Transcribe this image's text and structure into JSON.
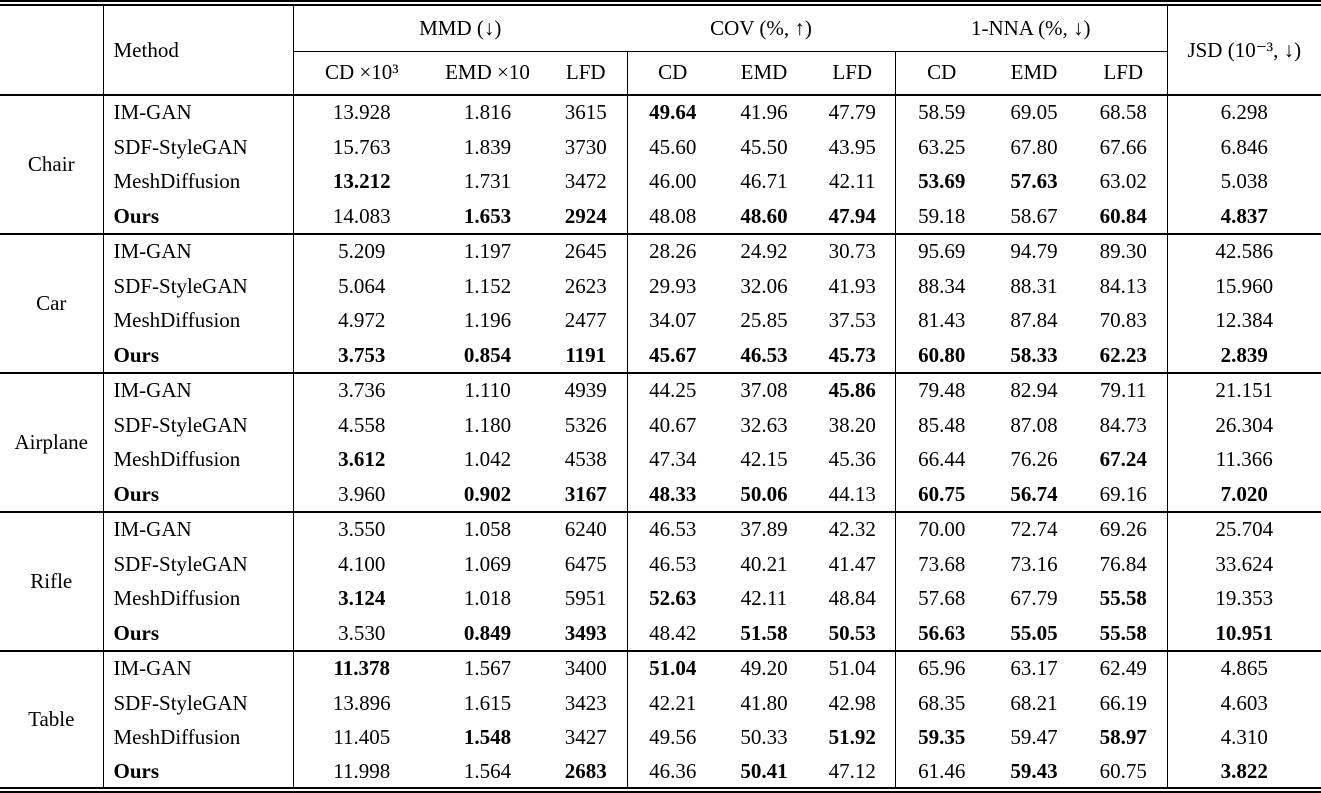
{
  "table": {
    "header": {
      "method_label": "Method",
      "groups": [
        {
          "label": "MMD (↓)",
          "subcols": [
            "CD ×10³",
            "EMD ×10",
            "LFD"
          ]
        },
        {
          "label": "COV (%, ↑)",
          "subcols": [
            "CD",
            "EMD",
            "LFD"
          ]
        },
        {
          "label": "1-NNA (%, ↓)",
          "subcols": [
            "CD",
            "EMD",
            "LFD"
          ]
        }
      ],
      "jsd_label": "JSD (10⁻³, ↓)"
    },
    "sections": [
      {
        "category": "Chair",
        "rows": [
          {
            "method": "IM-GAN",
            "method_bold": false,
            "values": [
              "13.928",
              "1.816",
              "3615",
              "49.64",
              "41.96",
              "47.79",
              "58.59",
              "69.05",
              "68.58",
              "6.298"
            ],
            "bold": [
              3
            ]
          },
          {
            "method": "SDF-StyleGAN",
            "method_bold": false,
            "values": [
              "15.763",
              "1.839",
              "3730",
              "45.60",
              "45.50",
              "43.95",
              "63.25",
              "67.80",
              "67.66",
              "6.846"
            ],
            "bold": []
          },
          {
            "method": "MeshDiffusion",
            "method_bold": false,
            "values": [
              "13.212",
              "1.731",
              "3472",
              "46.00",
              "46.71",
              "42.11",
              "53.69",
              "57.63",
              "63.02",
              "5.038"
            ],
            "bold": [
              0,
              6,
              7
            ]
          },
          {
            "method": "Ours",
            "method_bold": true,
            "values": [
              "14.083",
              "1.653",
              "2924",
              "48.08",
              "48.60",
              "47.94",
              "59.18",
              "58.67",
              "60.84",
              "4.837"
            ],
            "bold": [
              1,
              2,
              4,
              5,
              8,
              9
            ]
          }
        ]
      },
      {
        "category": "Car",
        "rows": [
          {
            "method": "IM-GAN",
            "method_bold": false,
            "values": [
              "5.209",
              "1.197",
              "2645",
              "28.26",
              "24.92",
              "30.73",
              "95.69",
              "94.79",
              "89.30",
              "42.586"
            ],
            "bold": []
          },
          {
            "method": "SDF-StyleGAN",
            "method_bold": false,
            "values": [
              "5.064",
              "1.152",
              "2623",
              "29.93",
              "32.06",
              "41.93",
              "88.34",
              "88.31",
              "84.13",
              "15.960"
            ],
            "bold": []
          },
          {
            "method": "MeshDiffusion",
            "method_bold": false,
            "values": [
              "4.972",
              "1.196",
              "2477",
              "34.07",
              "25.85",
              "37.53",
              "81.43",
              "87.84",
              "70.83",
              "12.384"
            ],
            "bold": []
          },
          {
            "method": "Ours",
            "method_bold": true,
            "values": [
              "3.753",
              "0.854",
              "1191",
              "45.67",
              "46.53",
              "45.73",
              "60.80",
              "58.33",
              "62.23",
              "2.839"
            ],
            "bold": [
              0,
              1,
              2,
              3,
              4,
              5,
              6,
              7,
              8,
              9
            ]
          }
        ]
      },
      {
        "category": "Airplane",
        "rows": [
          {
            "method": "IM-GAN",
            "method_bold": false,
            "values": [
              "3.736",
              "1.110",
              "4939",
              "44.25",
              "37.08",
              "45.86",
              "79.48",
              "82.94",
              "79.11",
              "21.151"
            ],
            "bold": [
              5
            ]
          },
          {
            "method": "SDF-StyleGAN",
            "method_bold": false,
            "values": [
              "4.558",
              "1.180",
              "5326",
              "40.67",
              "32.63",
              "38.20",
              "85.48",
              "87.08",
              "84.73",
              "26.304"
            ],
            "bold": []
          },
          {
            "method": "MeshDiffusion",
            "method_bold": false,
            "values": [
              "3.612",
              "1.042",
              "4538",
              "47.34",
              "42.15",
              "45.36",
              "66.44",
              "76.26",
              "67.24",
              "11.366"
            ],
            "bold": [
              0,
              8
            ]
          },
          {
            "method": "Ours",
            "method_bold": true,
            "values": [
              "3.960",
              "0.902",
              "3167",
              "48.33",
              "50.06",
              "44.13",
              "60.75",
              "56.74",
              "69.16",
              "7.020"
            ],
            "bold": [
              1,
              2,
              3,
              4,
              6,
              7,
              9
            ]
          }
        ]
      },
      {
        "category": "Rifle",
        "rows": [
          {
            "method": "IM-GAN",
            "method_bold": false,
            "values": [
              "3.550",
              "1.058",
              "6240",
              "46.53",
              "37.89",
              "42.32",
              "70.00",
              "72.74",
              "69.26",
              "25.704"
            ],
            "bold": []
          },
          {
            "method": "SDF-StyleGAN",
            "method_bold": false,
            "values": [
              "4.100",
              "1.069",
              "6475",
              "46.53",
              "40.21",
              "41.47",
              "73.68",
              "73.16",
              "76.84",
              "33.624"
            ],
            "bold": []
          },
          {
            "method": "MeshDiffusion",
            "method_bold": false,
            "values": [
              "3.124",
              "1.018",
              "5951",
              "52.63",
              "42.11",
              "48.84",
              "57.68",
              "67.79",
              "55.58",
              "19.353"
            ],
            "bold": [
              0,
              3,
              8
            ]
          },
          {
            "method": "Ours",
            "method_bold": true,
            "values": [
              "3.530",
              "0.849",
              "3493",
              "48.42",
              "51.58",
              "50.53",
              "56.63",
              "55.05",
              "55.58",
              "10.951"
            ],
            "bold": [
              1,
              2,
              4,
              5,
              6,
              7,
              8,
              9
            ]
          }
        ]
      },
      {
        "category": "Table",
        "rows": [
          {
            "method": "IM-GAN",
            "method_bold": false,
            "values": [
              "11.378",
              "1.567",
              "3400",
              "51.04",
              "49.20",
              "51.04",
              "65.96",
              "63.17",
              "62.49",
              "4.865"
            ],
            "bold": [
              0,
              3
            ]
          },
          {
            "method": "SDF-StyleGAN",
            "method_bold": false,
            "values": [
              "13.896",
              "1.615",
              "3423",
              "42.21",
              "41.80",
              "42.98",
              "68.35",
              "68.21",
              "66.19",
              "4.603"
            ],
            "bold": []
          },
          {
            "method": "MeshDiffusion",
            "method_bold": false,
            "values": [
              "11.405",
              "1.548",
              "3427",
              "49.56",
              "50.33",
              "51.92",
              "59.35",
              "59.47",
              "58.97",
              "4.310"
            ],
            "bold": [
              1,
              5,
              6,
              8
            ]
          },
          {
            "method": "Ours",
            "method_bold": true,
            "values": [
              "11.998",
              "1.564",
              "2683",
              "46.36",
              "50.41",
              "47.12",
              "61.46",
              "59.43",
              "60.75",
              "3.822"
            ],
            "bold": [
              2,
              4,
              7,
              9
            ]
          }
        ]
      }
    ]
  }
}
